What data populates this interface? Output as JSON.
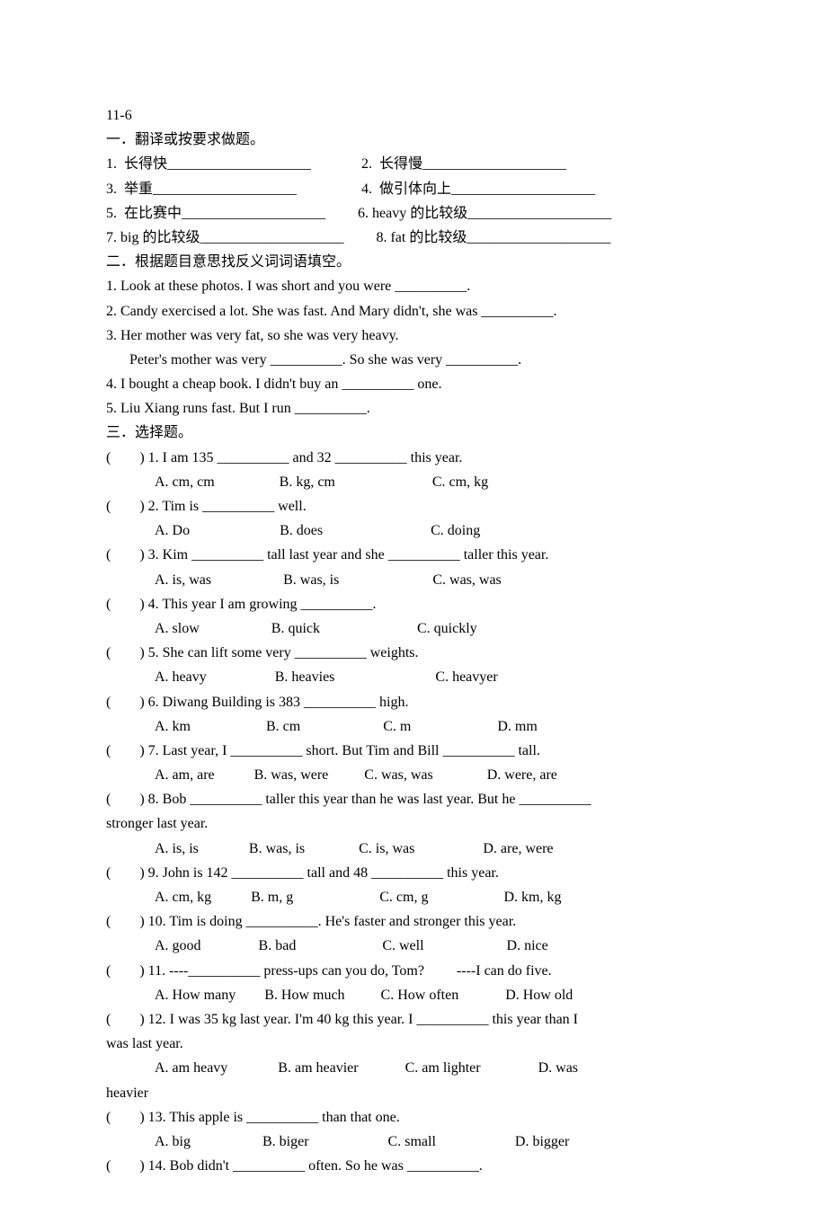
{
  "header": "11-6",
  "section1": {
    "title": "一．翻译或按要求做题。",
    "line1": "1.  长得快____________________              2.  长得慢____________________",
    "line2": "3.  举重____________________                  4.  做引体向上____________________",
    "line3": "5.  在比赛中____________________         6. heavy 的比较级____________________",
    "line4": "7. big 的比较级____________________         8. fat 的比较级____________________"
  },
  "section2": {
    "title": "二．根据题目意思找反义词词语填空。",
    "q1": "1. Look at these photos. I was short and you were __________.",
    "q2": "2. Candy exercised a lot. She was fast. And Mary didn't, she was __________.",
    "q3a": "3. Her mother was very fat, so she was very heavy.",
    "q3b": "Peter's mother was very __________. So she was very __________.",
    "q4": "4. I bought a cheap book. I didn't buy an __________ one.",
    "q5": "5. Liu Xiang runs fast. But I run __________."
  },
  "section3": {
    "title": "三．选择题。",
    "q1": "(        ) 1. I am 135 __________ and 32 __________ this year.",
    "q1opts": "A. cm, cm                  B. kg, cm                           C. cm, kg",
    "q2": "(        ) 2. Tim is __________ well.",
    "q2opts": "A. Do                         B. does                              C. doing",
    "q3": "(        ) 3. Kim __________ tall last year and she __________ taller this year.",
    "q3opts": "A. is, was                    B. was, is                          C. was, was",
    "q4": "(        ) 4. This year I am growing __________.",
    "q4opts": "A. slow                    B. quick                           C. quickly",
    "q5": "(        ) 5. She can lift some very __________ weights.",
    "q5opts": "A. heavy                   B. heavies                            C. heavyer",
    "q6": "(        ) 6. Diwang Building is 383 __________ high.",
    "q6opts": "A. km                     B. cm                       C. m                        D. mm",
    "q7": "(        ) 7. Last year, I __________ short. But Tim and Bill __________ tall.",
    "q7opts": "A. am, are           B. was, were          C. was, was               D. were, are",
    "q8a": "(        ) 8. Bob __________ taller this year than he was last year. But he __________",
    "q8b": "stronger last year.",
    "q8opts": "A. is, is              B. was, is               C. is, was                   D. are, were",
    "q9": "(        ) 9. John is 142 __________ tall and 48 __________ this year.",
    "q9opts": "A. cm, kg           B. m, g                        C. cm, g                     D. km, kg",
    "q10": "(        ) 10. Tim is doing __________. He's faster and stronger this year.",
    "q10opts": "A. good                B. bad                        C. well                       D. nice",
    "q11": "(        ) 11. ----__________ press-ups can you do, Tom?         ----I can do five.",
    "q11opts": "A. How many        B. How much          C. How often             D. How old",
    "q12a": "(        ) 12. I was 35 kg last year. I'm 40 kg this year. I __________ this year than I",
    "q12b": "was last year.",
    "q12optsa": "A. am heavy              B. am heavier             C. am lighter                D. was",
    "q12optsb": "heavier",
    "q13": "(        ) 13. This apple is __________ than that one.",
    "q13opts": "A. big                    B. biger                      C. small                      D. bigger",
    "q14": "(        ) 14. Bob didn't __________ often. So he was __________."
  }
}
